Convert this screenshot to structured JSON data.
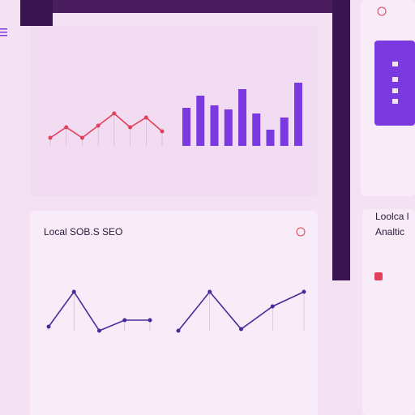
{
  "card_title": "Local SOB.S SEO",
  "side_card": {
    "title": "Loolca l",
    "subtitle": "Analtic"
  },
  "widgets": [
    {
      "type": "line",
      "color": "#e0405a",
      "values": [
        2,
        4.6,
        2,
        5,
        8,
        4.6,
        7,
        3.6
      ]
    },
    {
      "type": "bar",
      "color": "#7a3ae0",
      "values": [
        47,
        62,
        50,
        45,
        70,
        40,
        20,
        35,
        78
      ]
    },
    {
      "type": "line",
      "color": "#4a2a9a",
      "values": [
        1,
        9.6,
        0,
        2.6,
        2.6
      ]
    },
    {
      "type": "line",
      "color": "#4a2a9a",
      "values": [
        0,
        9.6,
        0.4,
        6,
        9.6
      ]
    }
  ]
}
